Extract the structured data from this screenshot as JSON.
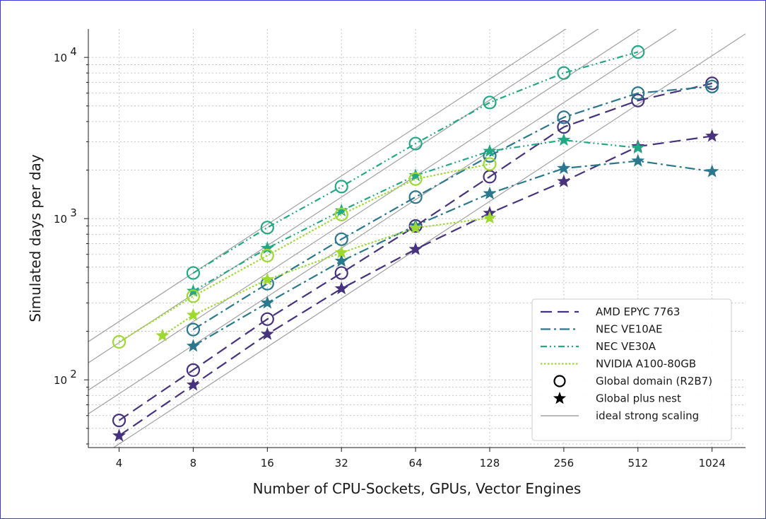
{
  "chart_data": {
    "type": "line",
    "title": "",
    "xlabel": "Number of CPU-Sockets, GPUs, Vector Engines",
    "ylabel": "Simulated days per day",
    "xscale": "log2",
    "yscale": "log10",
    "xlim": [
      3,
      1400
    ],
    "ylim": [
      38,
      15000
    ],
    "x_ticks": [
      4,
      8,
      16,
      32,
      64,
      128,
      256,
      512,
      1024
    ],
    "x_tick_labels": [
      "4",
      "8",
      "16",
      "32",
      "64",
      "128",
      "256",
      "512",
      "1024"
    ],
    "y_ticks": [
      100,
      1000,
      10000
    ],
    "y_tick_labels": [
      {
        "base": "10",
        "exp": "2"
      },
      {
        "base": "10",
        "exp": "3"
      },
      {
        "base": "10",
        "exp": "4"
      }
    ],
    "grid": true,
    "legend_position": "lower-right",
    "marker_legend": [
      {
        "label": "Global domain (R2B7)",
        "marker": "open-circle"
      },
      {
        "label": "Global plus nest",
        "marker": "star"
      }
    ],
    "ideal_line": {
      "label": "ideal strong scaling",
      "color": "#a0a0a0",
      "anchors": [
        [
          4,
          40
        ],
        [
          4,
          82
        ],
        [
          4,
          115
        ],
        [
          4,
          170
        ],
        [
          4,
          230
        ]
      ]
    },
    "series": [
      {
        "name": "AMD EPYC 7763",
        "color": "#46327e",
        "dash": "dashed",
        "global": {
          "x": [
            4,
            8,
            16,
            32,
            64,
            128,
            256,
            512,
            1024
          ],
          "y": [
            56,
            115,
            238,
            460,
            900,
            1820,
            3700,
            5400,
            6900
          ]
        },
        "nest": {
          "x": [
            4,
            8,
            16,
            32,
            64,
            128,
            256,
            512,
            1024
          ],
          "y": [
            45,
            93,
            192,
            368,
            645,
            1080,
            1700,
            2800,
            3250
          ]
        }
      },
      {
        "name": "NEC VE10AE",
        "color": "#2a788e",
        "dash": "dashdot",
        "global": {
          "x": [
            8,
            16,
            32,
            64,
            128,
            256,
            512,
            1024
          ],
          "y": [
            205,
            395,
            745,
            1360,
            2450,
            4250,
            6000,
            6600
          ]
        },
        "nest": {
          "x": [
            8,
            16,
            32,
            64,
            128,
            256,
            512,
            1024
          ],
          "y": [
            162,
            300,
            545,
            905,
            1430,
            2050,
            2280,
            1960
          ]
        }
      },
      {
        "name": "NEC VE30A",
        "color": "#22a884",
        "dash": "dashdotdot",
        "global": {
          "x": [
            8,
            16,
            32,
            64,
            128,
            256,
            512
          ],
          "y": [
            460,
            880,
            1580,
            2920,
            5250,
            8000,
            10800
          ]
        },
        "nest": {
          "x": [
            8,
            16,
            32,
            64,
            128,
            256,
            512
          ],
          "y": [
            355,
            655,
            1120,
            1850,
            2620,
            3070,
            2750
          ]
        }
      },
      {
        "name": "NVIDIA A100-80GB",
        "color": "#9ed92f",
        "dash": "dotted",
        "global": {
          "x": [
            4,
            8,
            16,
            32,
            64,
            128
          ],
          "y": [
            172,
            330,
            590,
            1060,
            1760,
            2180
          ]
        },
        "nest": {
          "x": [
            6,
            8,
            16,
            32,
            64,
            128
          ],
          "y": [
            188,
            252,
            418,
            615,
            875,
            1010
          ]
        }
      }
    ]
  }
}
